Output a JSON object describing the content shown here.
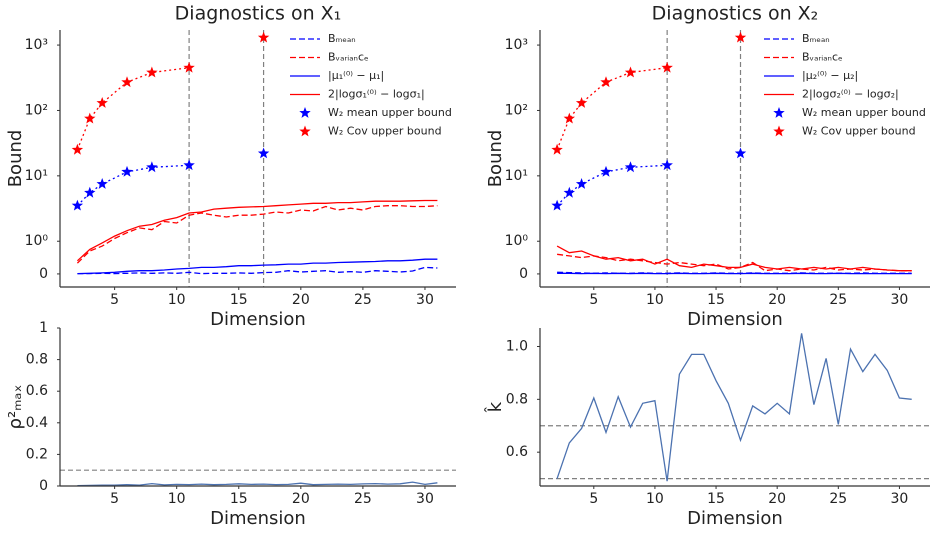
{
  "chart_data": [
    {
      "type": "line",
      "title": "Diagnostics on X₁",
      "xlabel": "Dimension",
      "ylabel": "Bound",
      "yscale": "symlog",
      "linthresh": 1,
      "linscale": 0.5,
      "xlim": [
        0.6,
        32.5
      ],
      "xticks": [
        5,
        10,
        15,
        20,
        25,
        30
      ],
      "ylim": [
        -0.4,
        1700
      ],
      "yticks": [
        0,
        {
          "value": 1,
          "label": "10⁰"
        },
        {
          "value": 10,
          "label": "10¹"
        },
        {
          "value": 100,
          "label": "10²"
        },
        {
          "value": 1000,
          "label": "10³"
        }
      ],
      "vlines": [
        11,
        17
      ],
      "legend": "upper right",
      "x": [
        2,
        3,
        4,
        5,
        6,
        7,
        8,
        9,
        10,
        11,
        12,
        13,
        14,
        15,
        16,
        17,
        18,
        19,
        20,
        21,
        22,
        23,
        24,
        25,
        26,
        27,
        28,
        29,
        30,
        31
      ],
      "series": [
        {
          "name": "Bₘₑₐₙ",
          "color": "#0000ff",
          "linestyle": "dashed",
          "values": [
            0.01,
            0.01,
            0.02,
            0.01,
            0.02,
            0.03,
            0.02,
            0.03,
            0.02,
            0.05,
            0.01,
            0.02,
            0.02,
            0.03,
            0.02,
            0.04,
            0.05,
            0.1,
            0.06,
            0.08,
            0.1,
            0.05,
            0.07,
            0.05,
            0.1,
            0.08,
            0.06,
            0.09,
            0.2,
            0.18
          ]
        },
        {
          "name": "Bᵥₐᵣᵢₐₙcₑ",
          "color": "#ff0000",
          "linestyle": "dashed",
          "values": [
            0.33,
            0.7,
            0.85,
            1.1,
            1.35,
            1.6,
            1.5,
            2.0,
            1.9,
            2.5,
            2.7,
            2.5,
            2.35,
            2.5,
            2.5,
            2.6,
            2.8,
            2.7,
            3.0,
            2.9,
            3.4,
            3.0,
            3.2,
            3.0,
            3.4,
            3.5,
            3.5,
            3.4,
            3.4,
            3.5
          ]
        },
        {
          "name": "|μ₁⁽⁰⁾ − μ₁|",
          "color": "#0000ff",
          "linestyle": "solid",
          "values": [
            0.01,
            0.02,
            0.03,
            0.05,
            0.08,
            0.1,
            0.1,
            0.12,
            0.15,
            0.17,
            0.2,
            0.2,
            0.22,
            0.25,
            0.25,
            0.27,
            0.28,
            0.3,
            0.3,
            0.33,
            0.33,
            0.35,
            0.36,
            0.37,
            0.38,
            0.4,
            0.4,
            0.42,
            0.45,
            0.45
          ]
        },
        {
          "name": "2|logσ₁⁽⁰⁾ − logσ₁|",
          "color": "#ff0000",
          "linestyle": "solid",
          "values": [
            0.4,
            0.75,
            0.95,
            1.2,
            1.45,
            1.7,
            1.8,
            2.1,
            2.3,
            2.7,
            2.8,
            3.1,
            3.2,
            3.3,
            3.35,
            3.4,
            3.5,
            3.6,
            3.7,
            3.8,
            3.8,
            3.9,
            3.9,
            4.0,
            4.1,
            4.1,
            4.1,
            4.15,
            4.2,
            4.2
          ]
        },
        {
          "name": "W₂ mean upper bound",
          "color": "#0000ff",
          "linestyle": "dotted",
          "marker": "star",
          "x": [
            2,
            3,
            4,
            6,
            8,
            11,
            null,
            17
          ],
          "values": [
            3.5,
            5.5,
            7.5,
            11.5,
            13.5,
            14.5,
            null,
            22
          ]
        },
        {
          "name": "W₂ Cov upper bound",
          "color": "#ff0000",
          "linestyle": "dotted",
          "marker": "star",
          "x": [
            2,
            3,
            4,
            6,
            8,
            11,
            null,
            17
          ],
          "values": [
            25,
            75,
            130,
            270,
            380,
            450,
            null,
            1300
          ]
        }
      ]
    },
    {
      "type": "line",
      "title": "Diagnostics on X₂",
      "xlabel": "Dimension",
      "ylabel": "Bound",
      "yscale": "symlog",
      "linthresh": 1,
      "linscale": 0.5,
      "xlim": [
        0.6,
        32.5
      ],
      "xticks": [
        5,
        10,
        15,
        20,
        25,
        30
      ],
      "ylim": [
        -0.4,
        1700
      ],
      "yticks": [
        0,
        {
          "value": 1,
          "label": "10⁰"
        },
        {
          "value": 10,
          "label": "10¹"
        },
        {
          "value": 100,
          "label": "10²"
        },
        {
          "value": 1000,
          "label": "10³"
        }
      ],
      "vlines": [
        11,
        17
      ],
      "legend": "upper right",
      "x": [
        2,
        3,
        4,
        5,
        6,
        7,
        8,
        9,
        10,
        11,
        12,
        13,
        14,
        15,
        16,
        17,
        18,
        19,
        20,
        21,
        22,
        23,
        24,
        25,
        26,
        27,
        28,
        29,
        30,
        31
      ],
      "series": [
        {
          "name": "Bₘₑₐₙ",
          "color": "#0000ff",
          "linestyle": "dashed",
          "values": [
            0.05,
            0.04,
            0.03,
            0.02,
            0.03,
            0.02,
            0.02,
            0.03,
            0.02,
            0.02,
            0.03,
            0.02,
            0.02,
            0.03,
            0.02,
            0.02,
            0.03,
            0.02,
            0.02,
            0.02,
            0.03,
            0.02,
            0.02,
            0.02,
            0.02,
            0.03,
            0.02,
            0.02,
            0.02,
            0.02
          ]
        },
        {
          "name": "Bᵥₐᵣᵢₐₙcₑ",
          "color": "#ff0000",
          "linestyle": "dashed",
          "values": [
            0.6,
            0.55,
            0.5,
            0.55,
            0.5,
            0.4,
            0.45,
            0.4,
            0.35,
            0.3,
            0.35,
            0.3,
            0.25,
            0.3,
            0.15,
            0.2,
            0.35,
            0.1,
            0.15,
            0.1,
            0.15,
            0.12,
            0.2,
            0.12,
            0.15,
            0.12,
            0.15,
            0.12,
            0.1,
            0.1
          ]
        },
        {
          "name": "|μ₂⁽⁰⁾ − μ₂|",
          "color": "#0000ff",
          "linestyle": "solid",
          "values": [
            0.02,
            0.02,
            0.01,
            0.02,
            0.01,
            0.02,
            0.01,
            0.02,
            0.01,
            0.01,
            0.02,
            0.01,
            0.01,
            0.02,
            0.01,
            0.01,
            0.02,
            0.01,
            0.01,
            0.01,
            0.02,
            0.01,
            0.01,
            0.02,
            0.01,
            0.01,
            0.01,
            0.01,
            0.01,
            0.01
          ]
        },
        {
          "name": "2|logσ₂⁽⁰⁾ − logσ₂|",
          "color": "#ff0000",
          "linestyle": "solid",
          "values": [
            0.85,
            0.65,
            0.7,
            0.55,
            0.45,
            0.5,
            0.4,
            0.45,
            0.3,
            0.45,
            0.25,
            0.2,
            0.3,
            0.25,
            0.2,
            0.2,
            0.3,
            0.2,
            0.15,
            0.2,
            0.15,
            0.2,
            0.15,
            0.2,
            0.15,
            0.2,
            0.15,
            0.12,
            0.1,
            0.1
          ]
        },
        {
          "name": "W₂ mean upper bound",
          "color": "#0000ff",
          "linestyle": "dotted",
          "marker": "star",
          "x": [
            2,
            3,
            4,
            6,
            8,
            11,
            null,
            17
          ],
          "values": [
            3.5,
            5.5,
            7.5,
            11.5,
            13.5,
            14.5,
            null,
            22
          ]
        },
        {
          "name": "W₂ Cov upper bound",
          "color": "#ff0000",
          "linestyle": "dotted",
          "marker": "star",
          "x": [
            2,
            3,
            4,
            6,
            8,
            11,
            null,
            17
          ],
          "values": [
            25,
            75,
            130,
            270,
            380,
            450,
            null,
            1300
          ]
        }
      ]
    },
    {
      "type": "line",
      "xlabel": "Dimension",
      "ylabel": "ρ²ₘₐₓ",
      "xlim": [
        0.6,
        32.5
      ],
      "xticks": [
        5,
        10,
        15,
        20,
        25,
        30
      ],
      "ylim": [
        0,
        1
      ],
      "yticks": [
        0.0,
        0.2,
        0.4,
        0.6,
        0.8,
        1.0
      ],
      "hlines": [
        0.1
      ],
      "x": [
        2,
        3,
        4,
        5,
        6,
        7,
        8,
        9,
        10,
        11,
        12,
        13,
        14,
        15,
        16,
        17,
        18,
        19,
        20,
        21,
        22,
        23,
        24,
        25,
        26,
        27,
        28,
        29,
        30,
        31
      ],
      "series": [
        {
          "color": "#4c72b0",
          "linestyle": "solid",
          "values": [
            0.002,
            0.004,
            0.005,
            0.006,
            0.008,
            0.006,
            0.015,
            0.007,
            0.01,
            0.009,
            0.012,
            0.008,
            0.01,
            0.014,
            0.01,
            0.012,
            0.009,
            0.01,
            0.018,
            0.008,
            0.01,
            0.012,
            0.01,
            0.013,
            0.015,
            0.012,
            0.014,
            0.025,
            0.01,
            0.02
          ]
        }
      ]
    },
    {
      "type": "line",
      "xlabel": "Dimension",
      "ylabel": "k̂",
      "xlim": [
        0.6,
        32.5
      ],
      "xticks": [
        5,
        10,
        15,
        20,
        25,
        30
      ],
      "ylim": [
        0.472,
        1.07
      ],
      "yticks": [
        0.6,
        0.8,
        {
          "value": 1.0,
          "label": "1.0"
        }
      ],
      "hlines": [
        0.5,
        0.7
      ],
      "x": [
        2,
        3,
        4,
        5,
        6,
        7,
        8,
        9,
        10,
        11,
        12,
        13,
        14,
        15,
        16,
        17,
        18,
        19,
        20,
        21,
        22,
        23,
        24,
        25,
        26,
        27,
        28,
        29,
        30,
        31
      ],
      "series": [
        {
          "color": "#4c72b0",
          "linestyle": "solid",
          "values": [
            0.5,
            0.635,
            0.69,
            0.805,
            0.675,
            0.81,
            0.695,
            0.785,
            0.795,
            0.49,
            0.895,
            0.97,
            0.97,
            0.87,
            0.785,
            0.645,
            0.775,
            0.745,
            0.785,
            0.745,
            1.05,
            0.78,
            0.955,
            0.705,
            0.99,
            0.905,
            0.97,
            0.91,
            0.805,
            0.8
          ]
        }
      ]
    }
  ]
}
